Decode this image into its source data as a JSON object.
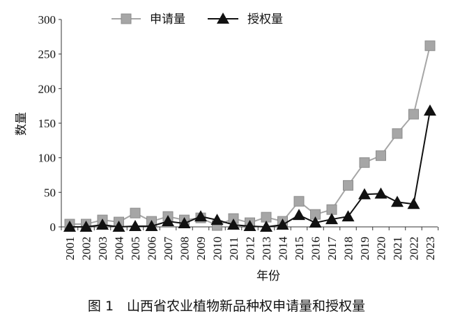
{
  "chart_data": {
    "type": "line",
    "caption": "图 1　山西省农业植物新品种权申请量和授权量",
    "xlabel": "年份",
    "ylabel": "数量",
    "ylim": [
      0,
      300
    ],
    "yticks": [
      0,
      50,
      100,
      150,
      200,
      250,
      300
    ],
    "grid": false,
    "legend": "top",
    "categories": [
      "2001",
      "2002",
      "2003",
      "2004",
      "2005",
      "2006",
      "2007",
      "2008",
      "2009",
      "2010",
      "2011",
      "2012",
      "2013",
      "2014",
      "2015",
      "2016",
      "2017",
      "2018",
      "2019",
      "2020",
      "2021",
      "2022",
      "2023"
    ],
    "series": [
      {
        "name": "申请量",
        "marker": "square",
        "color": "#a6a6a6",
        "values": [
          4,
          4,
          10,
          7,
          20,
          8,
          15,
          10,
          13,
          2,
          12,
          6,
          14,
          8,
          37,
          18,
          25,
          60,
          93,
          103,
          135,
          163,
          262
        ]
      },
      {
        "name": "授权量",
        "marker": "triangle",
        "color": "#111111",
        "values": [
          0,
          0,
          3,
          0,
          1,
          1,
          8,
          5,
          15,
          10,
          3,
          1,
          0,
          3,
          17,
          6,
          11,
          15,
          47,
          48,
          36,
          33,
          168
        ]
      }
    ]
  }
}
